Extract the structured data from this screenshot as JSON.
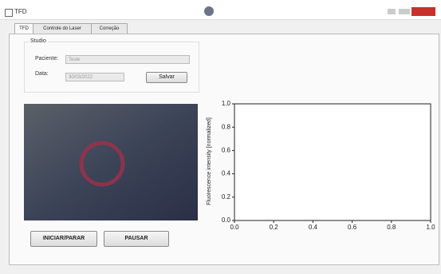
{
  "window": {
    "title": "TFD"
  },
  "tabs": [
    "TFD",
    "Controle do Laser",
    "Correção"
  ],
  "form": {
    "group_title": "Studio",
    "patient_label": "Paciente:",
    "patient_value": "Teste",
    "date_label": "Data:",
    "date_value": "30/03/2022",
    "save_button": "Salvar"
  },
  "buttons": [
    "INICIAR/PARAR",
    "PAUSAR"
  ],
  "chart_data": {
    "type": "line",
    "ylabel": "Fluorescence intensity [normalized]",
    "xlim": [
      0,
      1
    ],
    "ylim": [
      0,
      1
    ],
    "xticks": [
      {
        "value": 0,
        "label": "0.0"
      },
      0.2,
      0.4,
      0.6,
      0.8,
      {
        "value": 1,
        "label": "1.0"
      }
    ],
    "yticks": [
      {
        "value": 0,
        "label": "0.0"
      },
      0.2,
      0.4,
      0.6,
      0.8,
      {
        "value": 1,
        "label": "1.0"
      }
    ]
  }
}
